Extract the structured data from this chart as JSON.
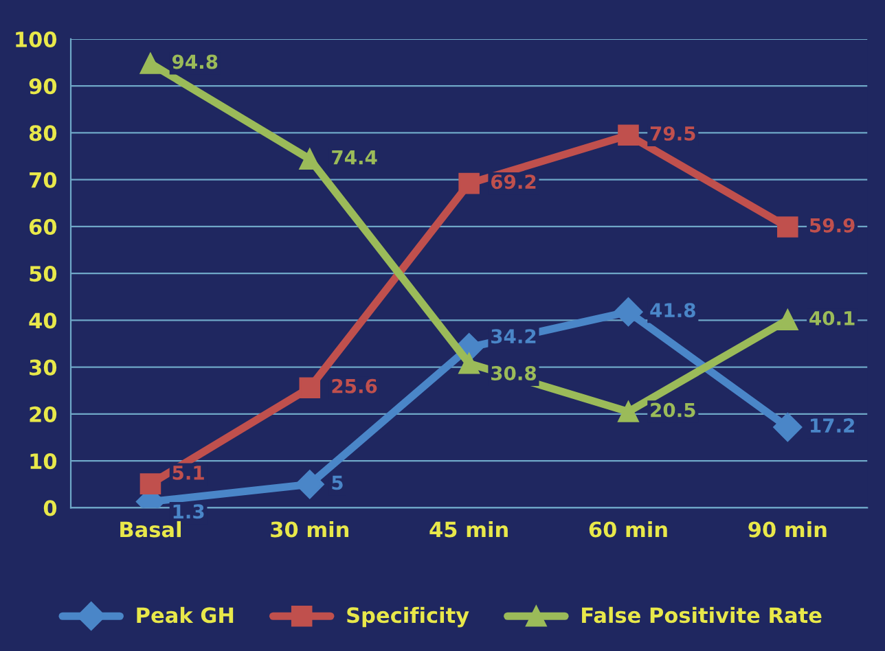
{
  "chart_data": {
    "type": "line",
    "categories": [
      "Basal",
      "30 min",
      "45 min",
      "60 min",
      "90 min"
    ],
    "series": [
      {
        "name": "Peak GH",
        "color": "#4a86c8",
        "marker": "diamond",
        "values": [
          1.3,
          5,
          34.2,
          41.8,
          17.2
        ]
      },
      {
        "name": "Specificity",
        "color": "#c0504d",
        "marker": "square",
        "values": [
          5.1,
          25.6,
          69.2,
          79.5,
          59.9
        ]
      },
      {
        "name": "False Positivite Rate",
        "color": "#9bbb59",
        "marker": "triangle",
        "values": [
          94.8,
          74.4,
          30.8,
          20.5,
          40.1
        ]
      }
    ],
    "ylim": [
      0,
      100
    ],
    "yticks": [
      0,
      10,
      20,
      30,
      40,
      50,
      60,
      70,
      80,
      90,
      100
    ],
    "grid": "y",
    "legend": "bottom",
    "data_labels": true,
    "line_style": "solid"
  }
}
